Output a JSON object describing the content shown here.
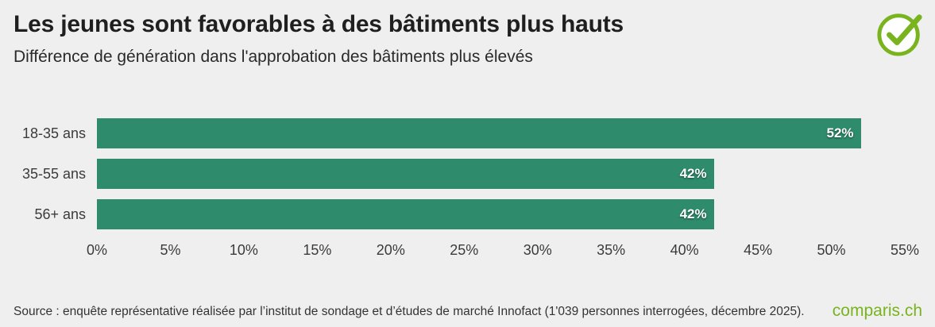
{
  "chart_data": {
    "type": "bar",
    "orientation": "horizontal",
    "title": "Les jeunes sont favorables à des bâtiments plus hauts",
    "subtitle": "Différence de génération dans l'approbation des bâtiments plus élevés",
    "categories": [
      "18-35 ans",
      "35-55 ans",
      "56+ ans"
    ],
    "values": [
      52,
      42,
      42
    ],
    "value_labels": [
      "52%",
      "42%",
      "42%"
    ],
    "xlabel": "",
    "ylabel": "",
    "xlim": [
      0,
      55
    ],
    "tick_values": [
      0,
      5,
      10,
      15,
      20,
      25,
      30,
      35,
      40,
      45,
      50,
      55
    ],
    "tick_labels": [
      "0%",
      "5%",
      "10%",
      "15%",
      "20%",
      "25%",
      "30%",
      "35%",
      "40%",
      "45%",
      "50%",
      "55%"
    ],
    "bar_color": "#2e8b6c",
    "grid": false,
    "legend": "none"
  },
  "footer": {
    "source": "Source : enquête représentative réalisée par l’institut de sondage et d’études de marché Innofact (1'039 personnes interrogées, décembre 2025).",
    "logo": "comparis.ch",
    "brand_color": "#79b41e"
  },
  "icons": {
    "check_circle": "check-circle-icon"
  }
}
